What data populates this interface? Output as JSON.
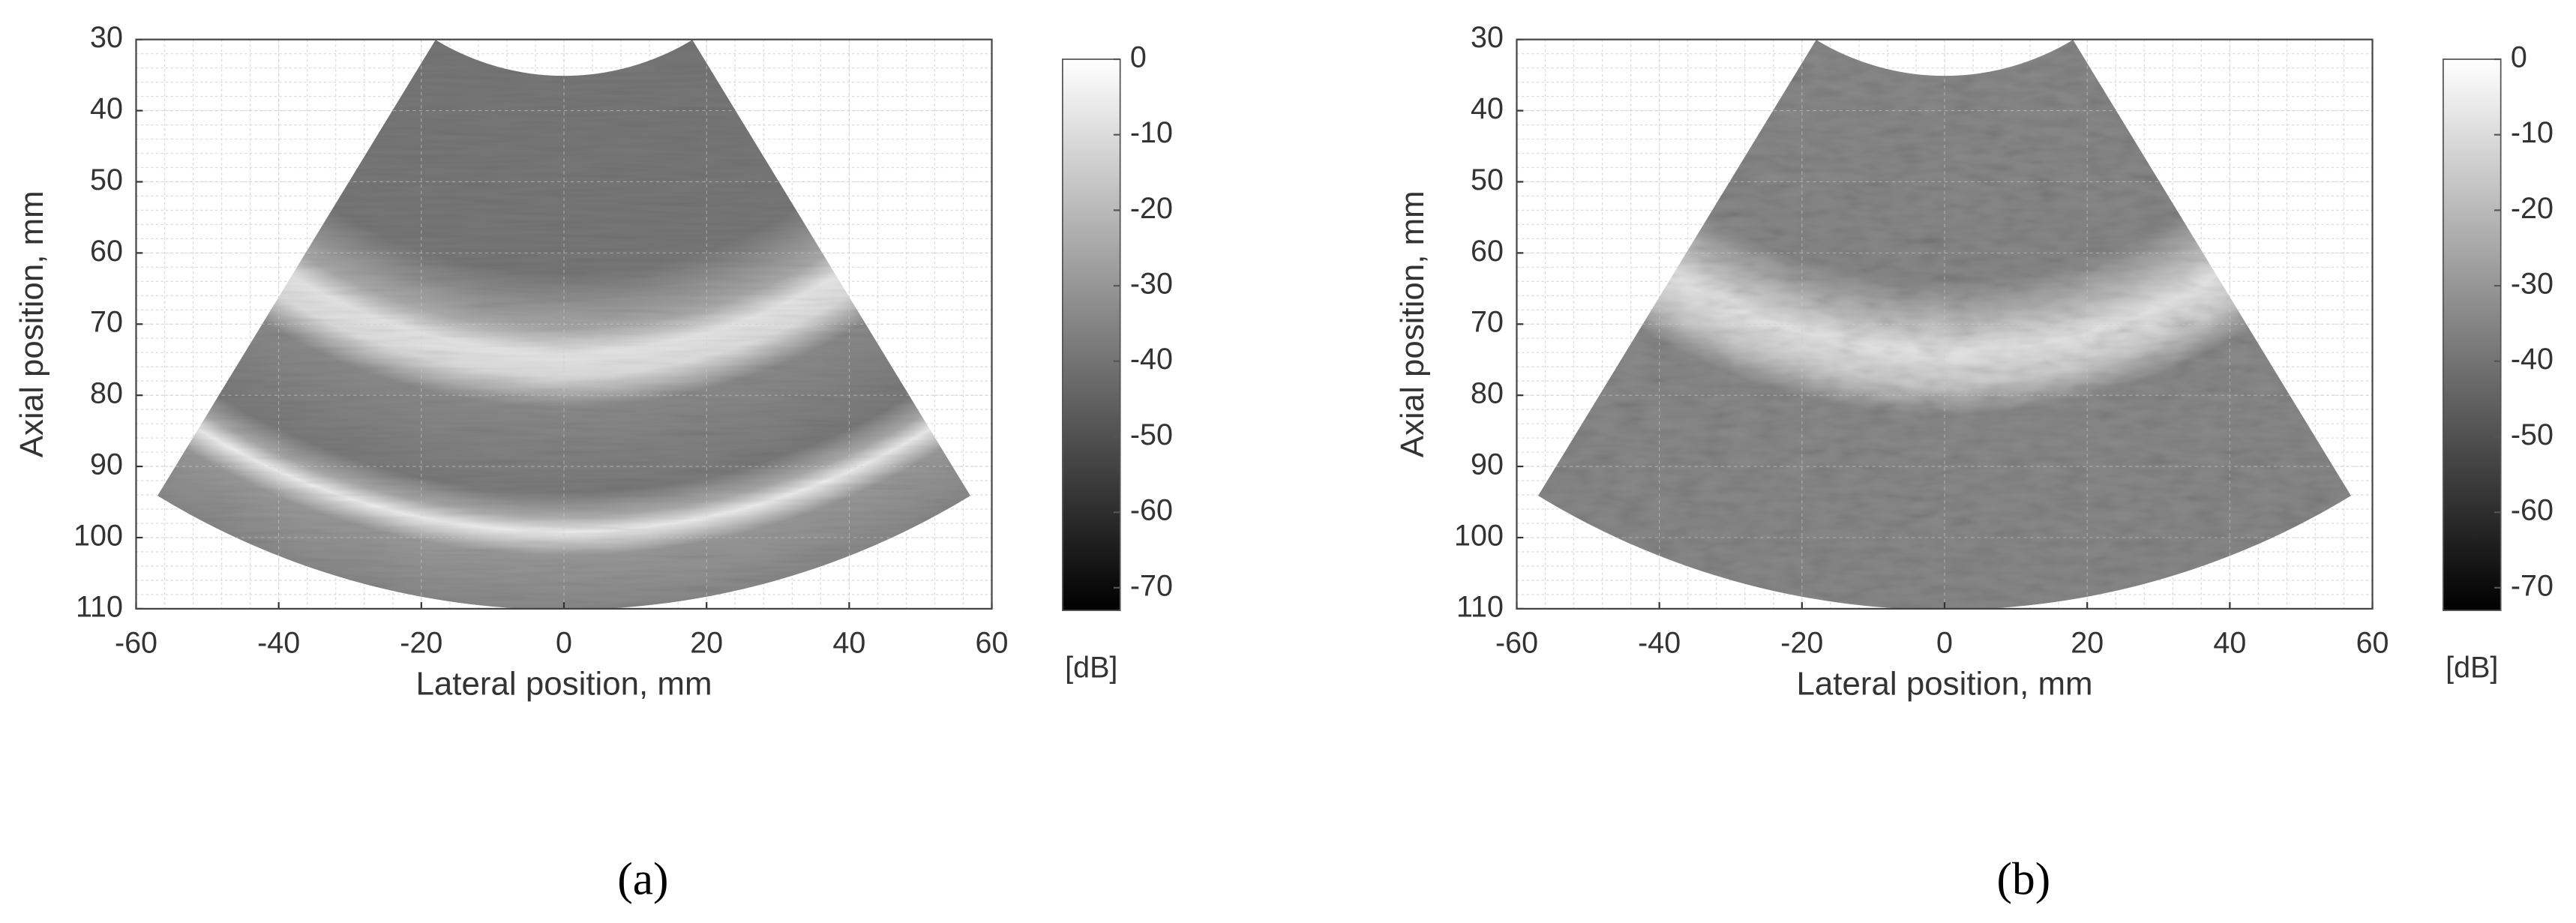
{
  "chart_data": [
    {
      "type": "image",
      "panel_label": "(a)",
      "xlabel": "Lateral position, mm",
      "ylabel": "Axial position, mm",
      "xlim": [
        -60,
        60
      ],
      "xticks": [
        -60,
        -40,
        -20,
        0,
        20,
        40,
        60
      ],
      "ylim": [
        30,
        110
      ],
      "y_reversed": true,
      "yticks": [
        30,
        40,
        50,
        60,
        70,
        80,
        90,
        100,
        110
      ],
      "grid": true,
      "colormap": "gray",
      "colorbar": {
        "label": "[dB]",
        "lim": [
          -73,
          0
        ],
        "ticks": [
          0,
          -10,
          -20,
          -30,
          -40,
          -50,
          -60,
          -70
        ]
      }
    },
    {
      "type": "image",
      "panel_label": "(b)",
      "xlabel": "Lateral position, mm",
      "ylabel": "Axial position, mm",
      "xlim": [
        -60,
        60
      ],
      "xticks": [
        -60,
        -40,
        -20,
        0,
        20,
        40,
        60
      ],
      "ylim": [
        30,
        110
      ],
      "y_reversed": true,
      "yticks": [
        30,
        40,
        50,
        60,
        70,
        80,
        90,
        100,
        110
      ],
      "grid": true,
      "colormap": "gray",
      "colorbar": {
        "label": "[dB]",
        "lim": [
          -73,
          0
        ],
        "ticks": [
          0,
          -10,
          -20,
          -30,
          -40,
          -50,
          -60,
          -70
        ]
      }
    }
  ]
}
